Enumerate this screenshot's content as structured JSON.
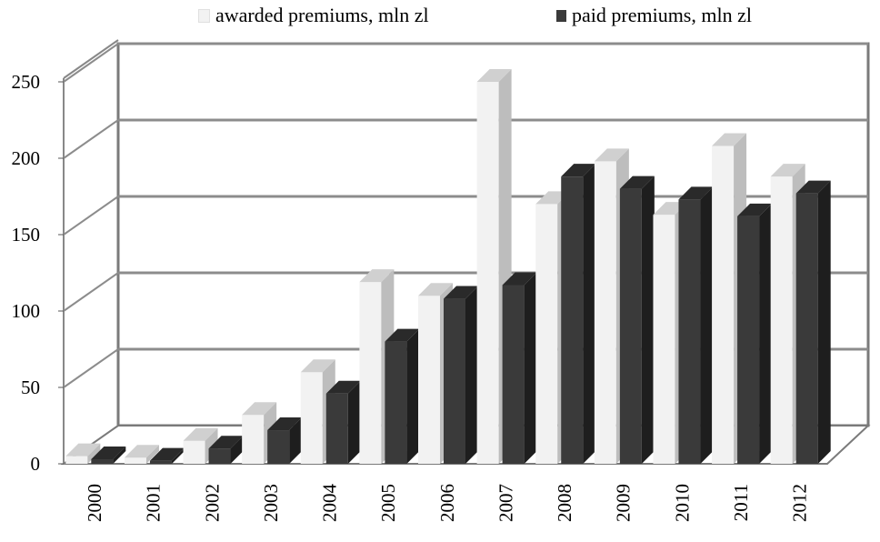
{
  "chart_data": {
    "type": "bar",
    "title": "",
    "xlabel": "",
    "ylabel": "",
    "categories": [
      "2000",
      "2001",
      "2002",
      "2003",
      "2004",
      "2005",
      "2006",
      "2007",
      "2008",
      "2009",
      "2010",
      "2011",
      "2012"
    ],
    "series": [
      {
        "name": "awarded premiums, mln zl",
        "values": [
          5,
          4,
          15,
          32,
          60,
          119,
          110,
          250,
          170,
          198,
          163,
          208,
          188
        ],
        "color": "#f2f2f2",
        "side_color": "#bdbdbd"
      },
      {
        "name": "paid premiums, mln zl",
        "values": [
          3,
          2,
          10,
          22,
          46,
          80,
          108,
          117,
          188,
          180,
          173,
          162,
          177
        ],
        "color": "#3a3a3a",
        "side_color": "#1e1e1e"
      }
    ],
    "yticks": [
      "0",
      "50",
      "100",
      "150",
      "200",
      "250"
    ],
    "ylim": [
      0,
      260
    ],
    "grid": true,
    "legend_position": "top",
    "projection": "3d"
  }
}
